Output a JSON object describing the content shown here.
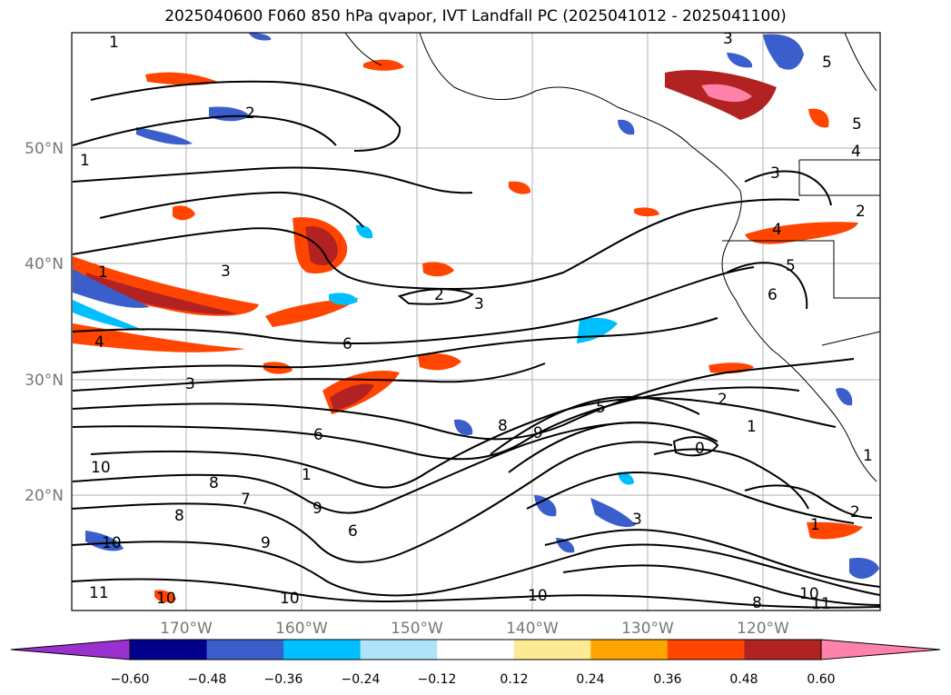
{
  "title": "2025040600 F060 850 hPa qvapor, IVT Landfall PC (2025041012 - 2025041100)",
  "map": {
    "lat_labels": [
      "50°N",
      "40°N",
      "30°N",
      "20°N"
    ],
    "lon_labels": [
      "170°W",
      "160°W",
      "150°W",
      "140°W",
      "130°W",
      "120°W"
    ],
    "contour_labels": [
      "1",
      "2",
      "1",
      "3",
      "2",
      "3",
      "1",
      "4",
      "6",
      "3",
      "6",
      "8",
      "9",
      "5",
      "2",
      "1",
      "0",
      "10",
      "8",
      "7",
      "8",
      "9",
      "6",
      "3",
      "9",
      "10",
      "11",
      "10",
      "10",
      "10",
      "5",
      "3",
      "4",
      "4",
      "5",
      "6",
      "5",
      "3",
      "2",
      "1",
      "10",
      "11",
      "8",
      "2",
      "1",
      "1"
    ],
    "colors": {
      "land_outline": "#000000",
      "grid": "#b0b0b0",
      "tick_labels": "#777777"
    }
  },
  "colorbar": {
    "ticks": [
      "−0.60",
      "−0.48",
      "−0.36",
      "−0.24",
      "−0.12",
      "0.12",
      "0.24",
      "0.36",
      "0.48",
      "0.60"
    ],
    "colors": [
      "#9b30d0",
      "#00008b",
      "#3a5fcd",
      "#00bfff",
      "#aee3fa",
      "#ffffff",
      "#fdeb93",
      "#ffa500",
      "#ff4500",
      "#b22222",
      "#ff82ab",
      "#ff82ab"
    ]
  }
}
